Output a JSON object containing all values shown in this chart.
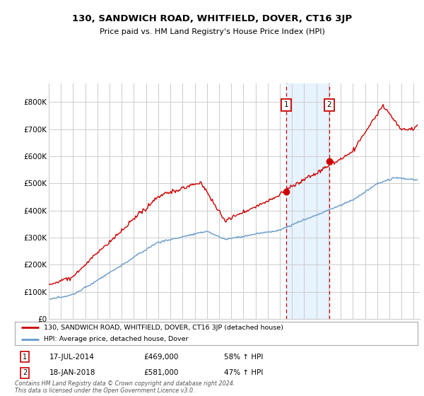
{
  "title": "130, SANDWICH ROAD, WHITFIELD, DOVER, CT16 3JP",
  "subtitle": "Price paid vs. HM Land Registry's House Price Index (HPI)",
  "ylabel_ticks": [
    "£0",
    "£100K",
    "£200K",
    "£300K",
    "£400K",
    "£500K",
    "£600K",
    "£700K",
    "£800K"
  ],
  "ytick_values": [
    0,
    100000,
    200000,
    300000,
    400000,
    500000,
    600000,
    700000,
    800000
  ],
  "ylim": [
    0,
    870000
  ],
  "xlim_start": 1995.0,
  "xlim_end": 2025.5,
  "sale1_x": 2014.54,
  "sale1_y": 469000,
  "sale1_label": "1",
  "sale1_date": "17-JUL-2014",
  "sale1_price": "£469,000",
  "sale1_note": "58% ↑ HPI",
  "sale2_x": 2018.05,
  "sale2_y": 581000,
  "sale2_label": "2",
  "sale2_date": "18-JAN-2018",
  "sale2_price": "£581,000",
  "sale2_note": "47% ↑ HPI",
  "legend_line1": "130, SANDWICH ROAD, WHITFIELD, DOVER, CT16 3JP (detached house)",
  "legend_line2": "HPI: Average price, detached house, Dover",
  "footer": "Contains HM Land Registry data © Crown copyright and database right 2024.\nThis data is licensed under the Open Government Licence v3.0.",
  "house_color": "#cc0000",
  "hpi_color": "#6699cc",
  "shade_color": "#ddeeff",
  "marker_box_color": "#cc0000",
  "grid_color": "#cccccc",
  "bg_color": "#ffffff"
}
